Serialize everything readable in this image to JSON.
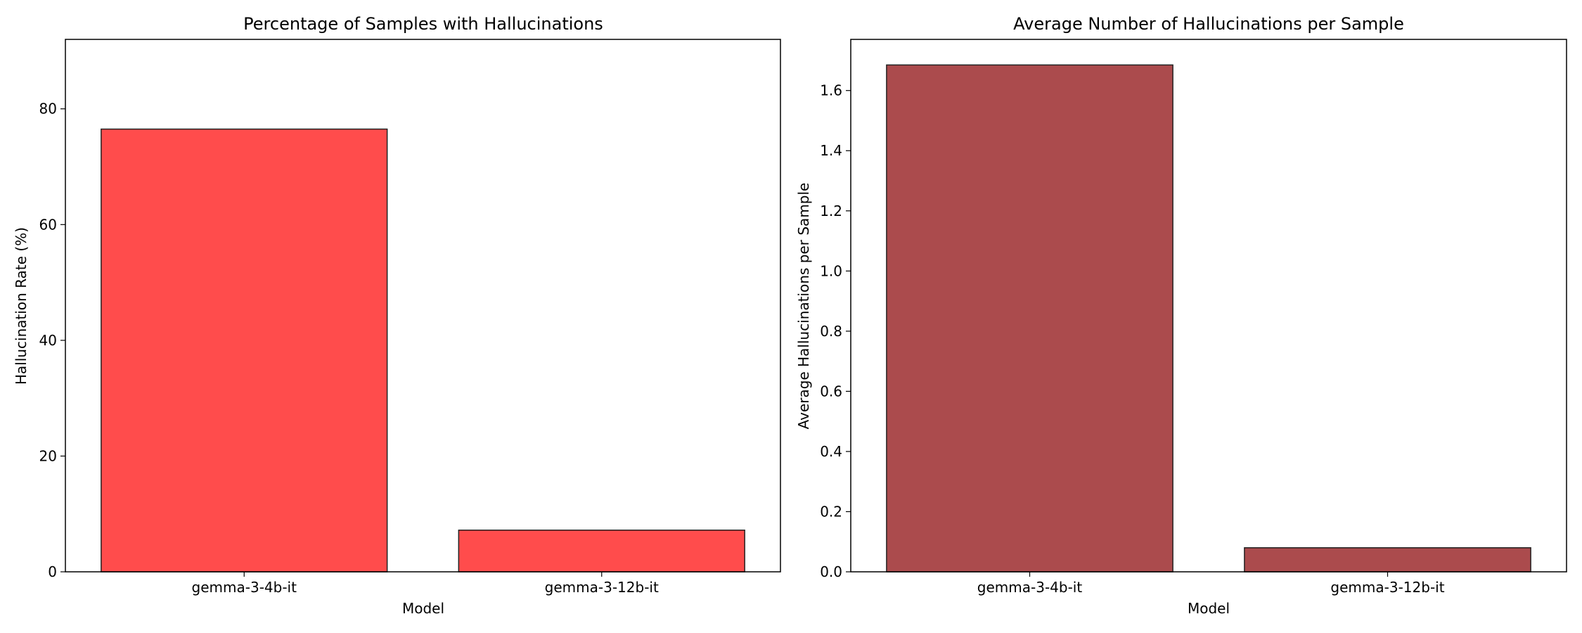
{
  "chart_data": [
    {
      "type": "bar",
      "title": "Percentage of Samples with Hallucinations",
      "xlabel": "Model",
      "ylabel": "Hallucination Rate (%)",
      "categories": [
        "gemma-3-4b-it",
        "gemma-3-12b-it"
      ],
      "values": [
        76.5,
        7.2
      ],
      "ylim": [
        0,
        92
      ],
      "yticks": [
        "0",
        "20",
        "40",
        "60",
        "80"
      ],
      "bar_color": "#ff4c4c",
      "edge_color": "#222222",
      "grid": false
    },
    {
      "type": "bar",
      "title": "Average Number of Hallucinations per Sample",
      "xlabel": "Model",
      "ylabel": "Average Hallucinations per Sample",
      "categories": [
        "gemma-3-4b-it",
        "gemma-3-12b-it"
      ],
      "values": [
        1.685,
        0.08
      ],
      "ylim": [
        0,
        1.77
      ],
      "yticks": [
        "0.0",
        "0.2",
        "0.4",
        "0.6",
        "0.8",
        "1.0",
        "1.2",
        "1.4",
        "1.6"
      ],
      "bar_color": "#ab4b4d",
      "edge_color": "#222222",
      "grid": false
    }
  ]
}
